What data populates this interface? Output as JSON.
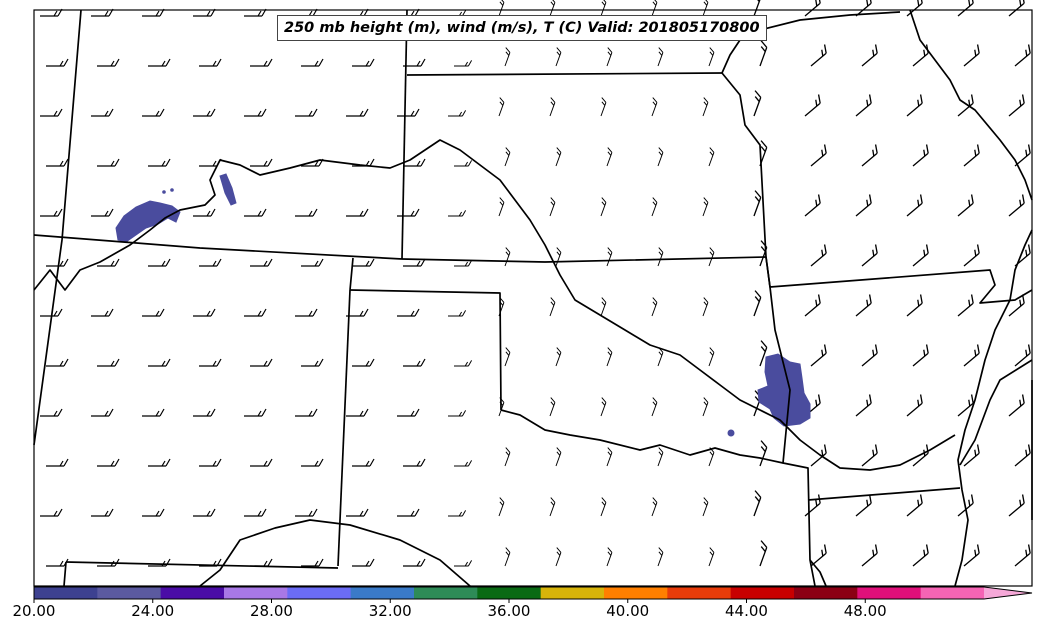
{
  "title": "250 mb height (m), wind (m/s), T (C) Valid: 201805170800",
  "colorbar": {
    "min": 20,
    "max": 52,
    "step": 2,
    "tick_labels": [
      "20.00",
      "24.00",
      "28.00",
      "32.00",
      "36.00",
      "40.00",
      "44.00",
      "48.00"
    ],
    "colors": [
      "#3d4190",
      "#5b5aa0",
      "#4a0ca6",
      "#a878e6",
      "#6b6cf5",
      "#3a7ac8",
      "#2e8b57",
      "#0a6a14",
      "#d7b40a",
      "#ff7f00",
      "#e83c0a",
      "#c80000",
      "#8b0014",
      "#e0107a",
      "#f564b4"
    ],
    "extend_color": "#f6a8d8"
  },
  "speed_areas": [
    {
      "name": "wyoming-nebraska",
      "value": 20
    },
    {
      "name": "arkansas-oklahoma",
      "value": 20
    }
  ]
}
